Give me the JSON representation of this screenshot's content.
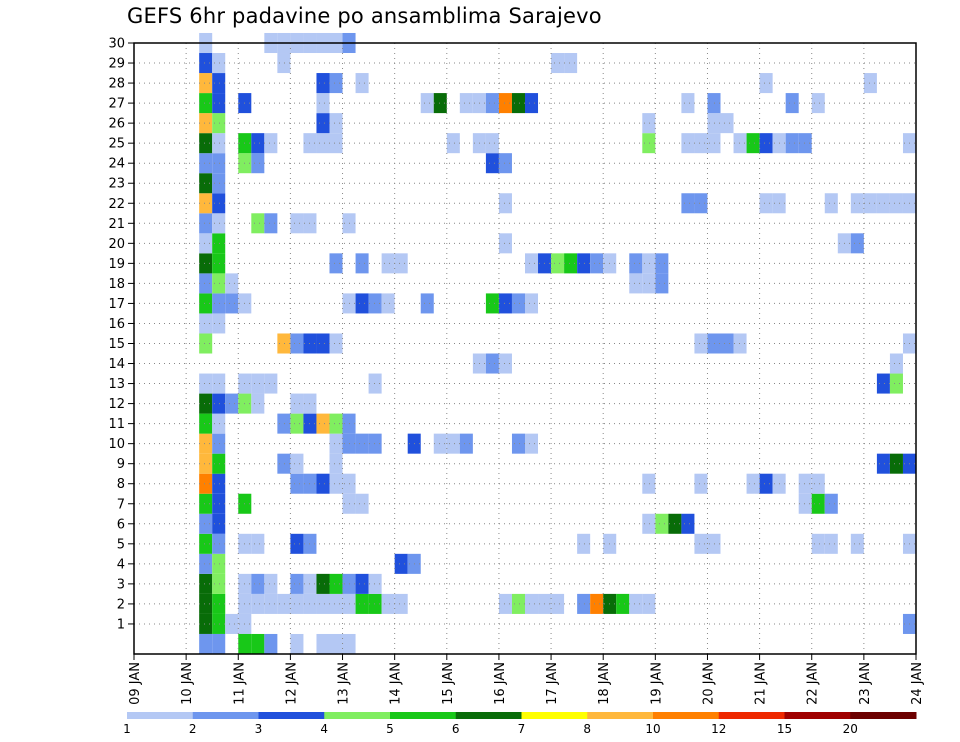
{
  "title": "GEFS 6hr padavine po ansamblima Sarajevo",
  "chart_data": {
    "type": "heatmap",
    "title": "GEFS 6hr padavine po ansamblima Sarajevo",
    "x_labels": [
      "09 JAN",
      "10 JAN",
      "11 JAN",
      "12 JAN",
      "13 JAN",
      "14 JAN",
      "15 JAN",
      "16 JAN",
      "17 JAN",
      "18 JAN",
      "19 JAN",
      "20 JAN",
      "21 JAN",
      "22 JAN",
      "23 JAN",
      "24 JAN"
    ],
    "y_labels": [
      "1",
      "2",
      "3",
      "4",
      "5",
      "6",
      "7",
      "8",
      "9",
      "10",
      "11",
      "12",
      "13",
      "14",
      "15",
      "16",
      "17",
      "18",
      "19",
      "20",
      "21",
      "22",
      "23",
      "24",
      "25",
      "26",
      "27",
      "28",
      "29",
      "30"
    ],
    "x_range_days": [
      9,
      24
    ],
    "y_range": [
      0,
      30
    ],
    "step_hours": 6,
    "grid": true,
    "colorbar": {
      "labels": [
        "1",
        "2",
        "3",
        "4",
        "5",
        "6",
        "7",
        "8",
        "10",
        "12",
        "15",
        "20"
      ],
      "colors": [
        "#b4c8f4",
        "#6e96ee",
        "#2050dc",
        "#80ee60",
        "#18c818",
        "#086c08",
        "#ffff00",
        "#ffb83c",
        "#ff8000",
        "#ee2800",
        "#a00000",
        "#6c0000"
      ]
    },
    "cells": [
      {
        "m": 1,
        "t": [
          [
            10.25,
            5
          ],
          [
            10.5,
            4
          ],
          [
            10.75,
            0
          ],
          [
            11,
            0
          ],
          [
            23.75,
            1
          ]
        ]
      },
      {
        "m": 2,
        "t": [
          [
            10.25,
            5
          ],
          [
            10.5,
            4
          ],
          [
            11,
            0
          ],
          [
            11.25,
            0
          ],
          [
            11.5,
            0
          ],
          [
            11.75,
            0
          ],
          [
            12,
            0
          ],
          [
            12.25,
            0
          ],
          [
            12.5,
            0
          ],
          [
            12.75,
            0
          ],
          [
            13,
            0
          ],
          [
            13.25,
            4
          ],
          [
            13.5,
            4
          ],
          [
            13.75,
            0
          ],
          [
            14,
            0
          ],
          [
            16,
            0
          ],
          [
            16.25,
            3
          ],
          [
            16.5,
            0
          ],
          [
            16.75,
            0
          ],
          [
            17,
            0
          ],
          [
            17.5,
            1
          ],
          [
            17.75,
            8
          ],
          [
            18,
            5
          ],
          [
            18.25,
            4
          ],
          [
            18.5,
            0
          ],
          [
            18.75,
            0
          ]
        ]
      },
      {
        "m": 3,
        "t": [
          [
            10.25,
            5
          ],
          [
            10.5,
            3
          ],
          [
            11,
            0
          ],
          [
            11.25,
            1
          ],
          [
            11.5,
            0
          ],
          [
            12,
            1
          ],
          [
            12.25,
            0
          ],
          [
            12.5,
            5
          ],
          [
            12.75,
            4
          ],
          [
            13,
            1
          ],
          [
            13.25,
            2
          ],
          [
            13.5,
            0
          ]
        ]
      },
      {
        "m": 4,
        "t": [
          [
            10.25,
            1
          ],
          [
            10.5,
            3
          ],
          [
            14,
            2
          ],
          [
            14.25,
            1
          ]
        ]
      },
      {
        "m": 5,
        "t": [
          [
            10.25,
            4
          ],
          [
            10.5,
            1
          ],
          [
            11,
            0
          ],
          [
            11.25,
            0
          ],
          [
            12,
            2
          ],
          [
            12.25,
            1
          ],
          [
            17.5,
            0
          ],
          [
            18,
            0
          ],
          [
            19.75,
            0
          ],
          [
            20,
            0
          ],
          [
            22,
            0
          ],
          [
            22.25,
            0
          ],
          [
            22.75,
            0
          ],
          [
            23.75,
            0
          ]
        ]
      },
      {
        "m": 6,
        "t": [
          [
            10.25,
            1
          ],
          [
            10.5,
            2
          ],
          [
            18.75,
            0
          ],
          [
            19,
            3
          ],
          [
            19.25,
            5
          ],
          [
            19.5,
            2
          ]
        ]
      },
      {
        "m": 7,
        "t": [
          [
            10.25,
            4
          ],
          [
            10.5,
            2
          ],
          [
            11,
            4
          ],
          [
            13,
            0
          ],
          [
            13.25,
            0
          ],
          [
            21.75,
            0
          ],
          [
            22,
            4
          ],
          [
            22.25,
            1
          ]
        ]
      },
      {
        "m": 8,
        "t": [
          [
            10.25,
            8
          ],
          [
            10.5,
            2
          ],
          [
            12,
            1
          ],
          [
            12.25,
            1
          ],
          [
            12.5,
            2
          ],
          [
            12.75,
            0
          ],
          [
            13,
            0
          ],
          [
            18.75,
            0
          ],
          [
            19.75,
            0
          ],
          [
            20.75,
            0
          ],
          [
            21,
            2
          ],
          [
            21.25,
            0
          ],
          [
            21.75,
            0
          ],
          [
            22,
            0
          ]
        ]
      },
      {
        "m": 9,
        "t": [
          [
            10.25,
            7
          ],
          [
            10.5,
            4
          ],
          [
            11.75,
            1
          ],
          [
            12,
            0
          ],
          [
            12.75,
            0
          ],
          [
            23.25,
            2
          ],
          [
            23.5,
            5
          ],
          [
            23.75,
            2
          ]
        ]
      },
      {
        "m": 10,
        "t": [
          [
            10.25,
            7
          ],
          [
            10.5,
            1
          ],
          [
            12.75,
            0
          ],
          [
            13,
            1
          ],
          [
            13.25,
            1
          ],
          [
            13.5,
            1
          ],
          [
            14.25,
            2
          ],
          [
            14.75,
            0
          ],
          [
            15,
            0
          ],
          [
            15.25,
            1
          ],
          [
            16.25,
            1
          ],
          [
            16.5,
            0
          ]
        ]
      },
      {
        "m": 11,
        "t": [
          [
            10.25,
            4
          ],
          [
            10.5,
            0
          ],
          [
            11.75,
            1
          ],
          [
            12,
            3
          ],
          [
            12.25,
            2
          ],
          [
            12.5,
            7
          ],
          [
            12.75,
            3
          ],
          [
            13,
            1
          ]
        ]
      },
      {
        "m": 12,
        "t": [
          [
            10.25,
            5
          ],
          [
            10.5,
            2
          ],
          [
            10.75,
            1
          ],
          [
            11,
            3
          ],
          [
            11.25,
            0
          ],
          [
            12,
            0
          ],
          [
            12.25,
            0
          ]
        ]
      },
      {
        "m": 13,
        "t": [
          [
            10.25,
            0
          ],
          [
            10.5,
            0
          ],
          [
            11,
            0
          ],
          [
            11.25,
            0
          ],
          [
            11.5,
            0
          ],
          [
            13.5,
            0
          ],
          [
            23.25,
            2
          ],
          [
            23.5,
            3
          ]
        ]
      },
      {
        "m": 14,
        "t": [
          [
            15.5,
            0
          ],
          [
            15.75,
            1
          ],
          [
            16,
            0
          ],
          [
            23.5,
            0
          ]
        ]
      },
      {
        "m": 15,
        "t": [
          [
            10.25,
            3
          ],
          [
            11.75,
            7
          ],
          [
            12,
            1
          ],
          [
            12.25,
            2
          ],
          [
            12.5,
            2
          ],
          [
            12.75,
            0
          ],
          [
            19.75,
            0
          ],
          [
            20,
            1
          ],
          [
            20.25,
            1
          ],
          [
            20.5,
            0
          ],
          [
            23.75,
            0
          ]
        ]
      },
      {
        "m": 16,
        "t": [
          [
            10.25,
            0
          ],
          [
            10.5,
            0
          ]
        ]
      },
      {
        "m": 17,
        "t": [
          [
            10.25,
            4
          ],
          [
            10.5,
            1
          ],
          [
            10.75,
            1
          ],
          [
            11,
            0
          ],
          [
            13,
            0
          ],
          [
            13.25,
            2
          ],
          [
            13.5,
            1
          ],
          [
            13.75,
            0
          ],
          [
            14.5,
            1
          ],
          [
            15.75,
            4
          ],
          [
            16,
            2
          ],
          [
            16.25,
            1
          ],
          [
            16.5,
            0
          ]
        ]
      },
      {
        "m": 18,
        "t": [
          [
            10.25,
            1
          ],
          [
            10.5,
            3
          ],
          [
            10.75,
            0
          ],
          [
            18.5,
            0
          ],
          [
            18.75,
            0
          ],
          [
            19,
            1
          ]
        ]
      },
      {
        "m": 19,
        "t": [
          [
            10.25,
            5
          ],
          [
            10.5,
            4
          ],
          [
            12.75,
            1
          ],
          [
            13.25,
            1
          ],
          [
            13.75,
            0
          ],
          [
            14,
            0
          ],
          [
            16.5,
            0
          ],
          [
            16.75,
            2
          ],
          [
            17,
            3
          ],
          [
            17.25,
            4
          ],
          [
            17.5,
            2
          ],
          [
            17.75,
            1
          ],
          [
            18,
            0
          ],
          [
            18.5,
            1
          ],
          [
            18.75,
            0
          ],
          [
            19,
            1
          ]
        ]
      },
      {
        "m": 20,
        "t": [
          [
            10.25,
            0
          ],
          [
            10.5,
            4
          ],
          [
            16,
            0
          ],
          [
            22.5,
            0
          ],
          [
            22.75,
            1
          ]
        ]
      },
      {
        "m": 21,
        "t": [
          [
            10.25,
            1
          ],
          [
            10.5,
            0
          ],
          [
            11.25,
            3
          ],
          [
            11.5,
            1
          ],
          [
            12,
            0
          ],
          [
            12.25,
            0
          ],
          [
            13,
            0
          ]
        ]
      },
      {
        "m": 22,
        "t": [
          [
            10.25,
            7
          ],
          [
            10.5,
            2
          ],
          [
            16,
            0
          ],
          [
            19.5,
            1
          ],
          [
            19.75,
            1
          ],
          [
            21,
            0
          ],
          [
            21.25,
            0
          ],
          [
            22.25,
            0
          ],
          [
            22.75,
            0
          ],
          [
            23,
            0
          ],
          [
            23.25,
            0
          ],
          [
            23.5,
            0
          ],
          [
            23.75,
            0
          ]
        ]
      },
      {
        "m": 23,
        "t": [
          [
            10.25,
            5
          ],
          [
            10.5,
            1
          ]
        ]
      },
      {
        "m": 24,
        "t": [
          [
            10.25,
            1
          ],
          [
            10.5,
            1
          ],
          [
            11,
            3
          ],
          [
            11.25,
            1
          ],
          [
            15.75,
            2
          ],
          [
            16,
            1
          ]
        ]
      },
      {
        "m": 25,
        "t": [
          [
            10.25,
            5
          ],
          [
            10.5,
            0
          ],
          [
            11,
            4
          ],
          [
            11.25,
            2
          ],
          [
            11.5,
            0
          ],
          [
            12.25,
            0
          ],
          [
            12.5,
            0
          ],
          [
            12.75,
            0
          ],
          [
            15,
            0
          ],
          [
            15.5,
            0
          ],
          [
            15.75,
            0
          ],
          [
            18.75,
            3
          ],
          [
            19.5,
            0
          ],
          [
            19.75,
            0
          ],
          [
            20,
            0
          ],
          [
            20.5,
            0
          ],
          [
            20.75,
            4
          ],
          [
            21,
            2
          ],
          [
            21.25,
            0
          ],
          [
            21.5,
            1
          ],
          [
            21.75,
            1
          ],
          [
            23.75,
            0
          ]
        ]
      },
      {
        "m": 26,
        "t": [
          [
            10.25,
            7
          ],
          [
            10.5,
            3
          ],
          [
            12.5,
            2
          ],
          [
            12.75,
            0
          ],
          [
            18.75,
            0
          ],
          [
            20,
            0
          ],
          [
            20.25,
            0
          ]
        ]
      },
      {
        "m": 27,
        "t": [
          [
            10.25,
            4
          ],
          [
            10.5,
            2
          ],
          [
            11,
            2
          ],
          [
            12.5,
            0
          ],
          [
            14.5,
            0
          ],
          [
            14.75,
            5
          ],
          [
            15.25,
            0
          ],
          [
            15.5,
            0
          ],
          [
            15.75,
            1
          ],
          [
            16,
            8
          ],
          [
            16.25,
            5
          ],
          [
            16.5,
            2
          ],
          [
            19.5,
            0
          ],
          [
            20,
            1
          ],
          [
            21.5,
            1
          ],
          [
            22,
            0
          ]
        ]
      },
      {
        "m": 28,
        "t": [
          [
            10.25,
            7
          ],
          [
            10.5,
            2
          ],
          [
            12.5,
            2
          ],
          [
            12.75,
            1
          ],
          [
            13.25,
            0
          ],
          [
            21,
            0
          ],
          [
            23,
            0
          ]
        ]
      },
      {
        "m": 29,
        "t": [
          [
            10.25,
            2
          ],
          [
            10.5,
            0
          ],
          [
            11.75,
            0
          ],
          [
            17,
            0
          ],
          [
            17.25,
            0
          ]
        ]
      },
      {
        "m": 30,
        "t": [
          [
            10.25,
            0
          ],
          [
            11.5,
            0
          ],
          [
            11.75,
            0
          ],
          [
            12,
            0
          ],
          [
            12.25,
            0
          ],
          [
            12.5,
            0
          ],
          [
            12.75,
            0
          ],
          [
            13,
            1
          ]
        ]
      },
      {
        "m": 0,
        "t": [
          [
            10.25,
            1
          ],
          [
            10.5,
            1
          ],
          [
            11,
            4
          ],
          [
            11.25,
            4
          ],
          [
            11.5,
            1
          ],
          [
            12,
            0
          ],
          [
            12.5,
            0
          ],
          [
            12.75,
            0
          ],
          [
            13,
            0
          ]
        ]
      }
    ]
  }
}
